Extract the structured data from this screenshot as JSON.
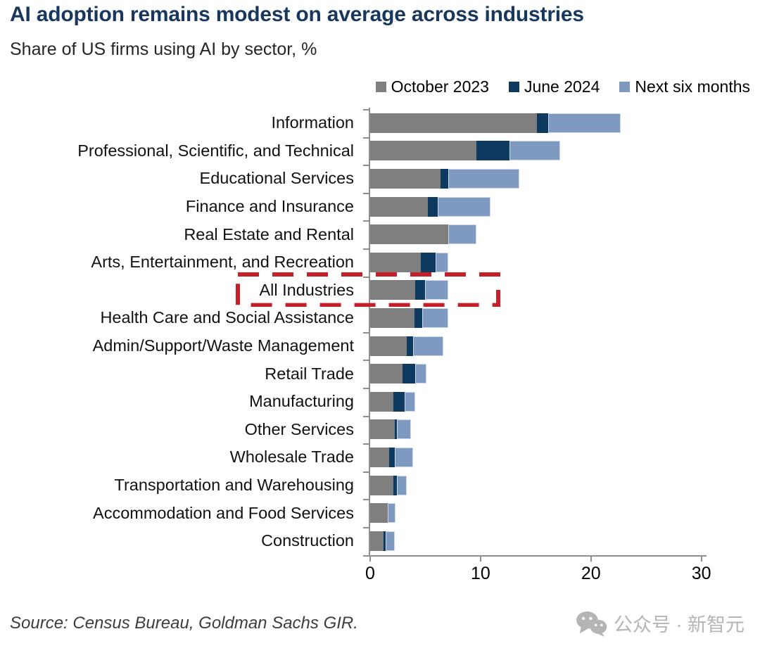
{
  "title": "AI adoption remains modest on average across industries",
  "subtitle": "Share of US firms using AI by sector, %",
  "legend_position": "top-right",
  "colors": {
    "october_2023": "#7f7f7f",
    "june_2024": "#0e3a5f",
    "next_six_months": "#7e9ac0",
    "highlight_red": "#c5202a",
    "title_blue": "#17375e",
    "axis_gray": "#8f8f8f"
  },
  "chart_data": {
    "type": "bar",
    "orientation": "horizontal",
    "stacked": true,
    "values_are_cumulative": true,
    "title": "AI adoption remains modest on average across industries",
    "xlabel": "",
    "ylabel": "",
    "xlim": [
      0,
      30
    ],
    "xticks": [
      "0",
      "10",
      "20",
      "30"
    ],
    "xtick_values": [
      0,
      10,
      20,
      30
    ],
    "grid": false,
    "categories": [
      "Information",
      "Professional, Scientific, and Technical",
      "Educational Services",
      "Finance and Insurance",
      "Real Estate and Rental",
      "Arts, Entertainment, and Recreation",
      "All Industries",
      "Health Care and Social Assistance",
      "Admin/Support/Waste Management",
      "Retail Trade",
      "Manufacturing",
      "Other Services",
      "Wholesale Trade",
      "Transportation and Warehousing",
      "Accommodation and Food Services",
      "Construction"
    ],
    "series": [
      {
        "name": "October 2023",
        "color": "#7f7f7f",
        "values": [
          15.1,
          9.6,
          6.4,
          5.2,
          7.1,
          4.6,
          4.1,
          4.0,
          3.3,
          2.9,
          2.1,
          2.2,
          1.7,
          2.1,
          1.6,
          1.2
        ]
      },
      {
        "name": "June 2024",
        "color": "#0e3a5f",
        "values": [
          16.1,
          12.6,
          7.1,
          6.1,
          7.1,
          5.9,
          5.0,
          4.7,
          3.9,
          4.1,
          3.1,
          2.4,
          2.2,
          2.4,
          1.6,
          1.4
        ]
      },
      {
        "name": "Next six months",
        "color": "#7e9ac0",
        "values": [
          22.7,
          17.2,
          13.5,
          10.9,
          9.6,
          7.1,
          7.1,
          7.1,
          6.6,
          5.1,
          4.1,
          3.7,
          3.9,
          3.3,
          2.3,
          2.2
        ]
      }
    ],
    "highlight": {
      "category": "All Industries",
      "style": "red-dashed-box",
      "color": "#c5202a"
    }
  },
  "source": "Source: Census Bureau, Goldman Sachs GIR.",
  "watermark": {
    "icon": "wechat-icon",
    "text": "公众号 · 新智元"
  }
}
